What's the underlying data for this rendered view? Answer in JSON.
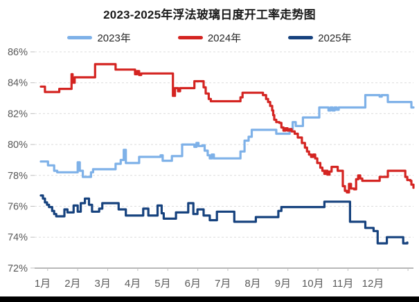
{
  "chart_data": {
    "type": "line",
    "title": "2023-2025年浮法玻璃日度开工率走势图",
    "ylabel": "",
    "xlabel": "",
    "grid": "dashed-horizontal",
    "legend_position": "top",
    "y_axis": {
      "min": 72,
      "max": 86,
      "step": 2,
      "tick_values": [
        86,
        84,
        82,
        80,
        78,
        76,
        74,
        72
      ],
      "tick_labels": [
        "86%",
        "84%",
        "82%",
        "80%",
        "78%",
        "76%",
        "74%",
        "72%"
      ]
    },
    "x_axis": {
      "unit": "day_of_year",
      "range": [
        1,
        365
      ],
      "tick_labels": [
        "1月",
        "2月",
        "3月",
        "4月",
        "5月",
        "6月",
        "7月",
        "8月",
        "9月",
        "10月",
        "11月",
        "12月"
      ]
    },
    "series": [
      {
        "name": "2023年",
        "color": "#7EB1E8",
        "points": [
          [
            1,
            78.9
          ],
          [
            8,
            78.65
          ],
          [
            14,
            78.3
          ],
          [
            17,
            78.2
          ],
          [
            35,
            78.2
          ],
          [
            37,
            78.85
          ],
          [
            39,
            78.3
          ],
          [
            42,
            77.9
          ],
          [
            48,
            77.9
          ],
          [
            50,
            78.2
          ],
          [
            52,
            78.4
          ],
          [
            70,
            78.4
          ],
          [
            74,
            78.75
          ],
          [
            79,
            79.0
          ],
          [
            82,
            79.65
          ],
          [
            84,
            78.8
          ],
          [
            95,
            78.8
          ],
          [
            97,
            79.2
          ],
          [
            116,
            79.2
          ],
          [
            118,
            79.3
          ],
          [
            120,
            78.95
          ],
          [
            127,
            78.95
          ],
          [
            129,
            79.25
          ],
          [
            137,
            79.25
          ],
          [
            139,
            80.0
          ],
          [
            149,
            80.0
          ],
          [
            151,
            79.85
          ],
          [
            153,
            80.1
          ],
          [
            155,
            79.9
          ],
          [
            159,
            79.95
          ],
          [
            161,
            79.6
          ],
          [
            164,
            79.3
          ],
          [
            166,
            79.1
          ],
          [
            168,
            79.35
          ],
          [
            170,
            79.1
          ],
          [
            193,
            79.1
          ],
          [
            196,
            79.55
          ],
          [
            200,
            80.25
          ],
          [
            204,
            80.5
          ],
          [
            207,
            80.95
          ],
          [
            229,
            80.95
          ],
          [
            231,
            80.7
          ],
          [
            242,
            80.7
          ],
          [
            244,
            81.0
          ],
          [
            247,
            81.45
          ],
          [
            250,
            81.2
          ],
          [
            254,
            81.2
          ],
          [
            257,
            81.75
          ],
          [
            271,
            81.75
          ],
          [
            273,
            82.4
          ],
          [
            280,
            82.4
          ],
          [
            282,
            82.2
          ],
          [
            284,
            82.4
          ],
          [
            286,
            82.2
          ],
          [
            288,
            82.4
          ],
          [
            290,
            82.25
          ],
          [
            292,
            82.4
          ],
          [
            316,
            82.4
          ],
          [
            318,
            83.2
          ],
          [
            330,
            83.2
          ],
          [
            332,
            83.1
          ],
          [
            334,
            83.2
          ],
          [
            338,
            83.2
          ],
          [
            340,
            82.75
          ],
          [
            361,
            82.75
          ],
          [
            363,
            82.4
          ],
          [
            365,
            82.4
          ]
        ]
      },
      {
        "name": "2024年",
        "color": "#D42421",
        "points": [
          [
            1,
            83.75
          ],
          [
            5,
            83.4
          ],
          [
            17,
            83.4
          ],
          [
            19,
            83.6
          ],
          [
            29,
            83.6
          ],
          [
            31,
            84.55
          ],
          [
            32,
            84.0
          ],
          [
            34,
            84.35
          ],
          [
            52,
            84.35
          ],
          [
            54,
            85.2
          ],
          [
            72,
            85.2
          ],
          [
            74,
            84.85
          ],
          [
            91,
            84.85
          ],
          [
            93,
            84.55
          ],
          [
            95,
            84.75
          ],
          [
            97,
            84.5
          ],
          [
            99,
            84.6
          ],
          [
            128,
            84.6
          ],
          [
            130,
            83.15
          ],
          [
            132,
            83.65
          ],
          [
            135,
            83.45
          ],
          [
            137,
            83.65
          ],
          [
            149,
            83.65
          ],
          [
            151,
            84.1
          ],
          [
            158,
            84.1
          ],
          [
            160,
            83.7
          ],
          [
            162,
            83.3
          ],
          [
            165,
            82.95
          ],
          [
            167,
            82.8
          ],
          [
            193,
            82.8
          ],
          [
            196,
            83.05
          ],
          [
            198,
            83.35
          ],
          [
            215,
            83.35
          ],
          [
            218,
            83.2
          ],
          [
            221,
            82.95
          ],
          [
            223,
            82.75
          ],
          [
            225,
            82.5
          ],
          [
            227,
            82.2
          ],
          [
            228,
            81.9
          ],
          [
            229,
            81.6
          ],
          [
            231,
            81.45
          ],
          [
            234,
            81.4
          ],
          [
            236,
            81.1
          ],
          [
            238,
            80.9
          ],
          [
            240,
            81.05
          ],
          [
            242,
            80.9
          ],
          [
            244,
            81.0
          ],
          [
            246,
            80.85
          ],
          [
            249,
            80.7
          ],
          [
            252,
            80.45
          ],
          [
            256,
            80.1
          ],
          [
            259,
            79.8
          ],
          [
            261,
            79.55
          ],
          [
            263,
            79.35
          ],
          [
            265,
            79.2
          ],
          [
            267,
            79.35
          ],
          [
            269,
            79.1
          ],
          [
            271,
            78.8
          ],
          [
            274,
            78.5
          ],
          [
            276,
            78.3
          ],
          [
            278,
            78.1
          ],
          [
            279,
            78.3
          ],
          [
            281,
            78.05
          ],
          [
            283,
            78.25
          ],
          [
            285,
            78.55
          ],
          [
            289,
            78.55
          ],
          [
            291,
            78.3
          ],
          [
            294,
            78.3
          ],
          [
            296,
            77.3
          ],
          [
            298,
            77.0
          ],
          [
            300,
            76.9
          ],
          [
            302,
            77.45
          ],
          [
            304,
            77.15
          ],
          [
            307,
            77.1
          ],
          [
            309,
            77.75
          ],
          [
            311,
            78.0
          ],
          [
            313,
            77.8
          ],
          [
            315,
            77.65
          ],
          [
            330,
            77.65
          ],
          [
            332,
            77.9
          ],
          [
            338,
            77.9
          ],
          [
            340,
            78.3
          ],
          [
            355,
            78.3
          ],
          [
            357,
            77.9
          ],
          [
            359,
            77.7
          ],
          [
            362,
            77.65
          ],
          [
            363,
            77.4
          ],
          [
            365,
            77.2
          ]
        ]
      },
      {
        "name": "2025年",
        "color": "#16427E",
        "points": [
          [
            1,
            76.7
          ],
          [
            3,
            76.5
          ],
          [
            5,
            76.25
          ],
          [
            7,
            76.1
          ],
          [
            9,
            75.95
          ],
          [
            12,
            75.7
          ],
          [
            14,
            75.5
          ],
          [
            16,
            75.35
          ],
          [
            22,
            75.35
          ],
          [
            24,
            75.8
          ],
          [
            27,
            75.6
          ],
          [
            31,
            75.6
          ],
          [
            33,
            76.05
          ],
          [
            37,
            75.65
          ],
          [
            40,
            76.2
          ],
          [
            44,
            76.5
          ],
          [
            48,
            76.1
          ],
          [
            51,
            75.65
          ],
          [
            56,
            75.65
          ],
          [
            58,
            75.85
          ],
          [
            61,
            76.2
          ],
          [
            75,
            76.2
          ],
          [
            77,
            75.8
          ],
          [
            81,
            75.8
          ],
          [
            84,
            75.4
          ],
          [
            99,
            75.4
          ],
          [
            101,
            75.85
          ],
          [
            104,
            75.85
          ],
          [
            106,
            75.4
          ],
          [
            114,
            75.4
          ],
          [
            115,
            76.05
          ],
          [
            117,
            76.05
          ],
          [
            119,
            75.55
          ],
          [
            121,
            75.2
          ],
          [
            129,
            75.2
          ],
          [
            133,
            75.6
          ],
          [
            141,
            75.6
          ],
          [
            145,
            76.2
          ],
          [
            148,
            76.2
          ],
          [
            150,
            75.5
          ],
          [
            154,
            75.8
          ],
          [
            157,
            75.8
          ],
          [
            160,
            75.4
          ],
          [
            164,
            75.4
          ],
          [
            166,
            75.1
          ],
          [
            171,
            75.1
          ],
          [
            173,
            75.65
          ],
          [
            188,
            75.65
          ],
          [
            190,
            75.0
          ],
          [
            209,
            75.0
          ],
          [
            211,
            75.3
          ],
          [
            231,
            75.3
          ],
          [
            233,
            75.7
          ],
          [
            236,
            75.95
          ],
          [
            276,
            75.95
          ],
          [
            278,
            76.3
          ],
          [
            301,
            76.3
          ],
          [
            303,
            75.0
          ],
          [
            316,
            75.0
          ],
          [
            318,
            74.6
          ],
          [
            324,
            74.6
          ],
          [
            326,
            74.4
          ],
          [
            328,
            74.4
          ],
          [
            330,
            73.6
          ],
          [
            337,
            73.6
          ],
          [
            339,
            74.0
          ],
          [
            353,
            74.0
          ],
          [
            355,
            73.6
          ],
          [
            359,
            73.65
          ]
        ]
      }
    ],
    "styles": {
      "gridline_color": "#dcdcdc",
      "axis_color": "#8c8c8c",
      "tick_color": "#bfbfbf",
      "axis_label_color": "#595959",
      "line_width": 3.2,
      "bottom_bar_color": "#000000"
    }
  },
  "legend": {
    "items": [
      {
        "label": "2023年"
      },
      {
        "label": "2024年"
      },
      {
        "label": "2025年"
      }
    ]
  }
}
